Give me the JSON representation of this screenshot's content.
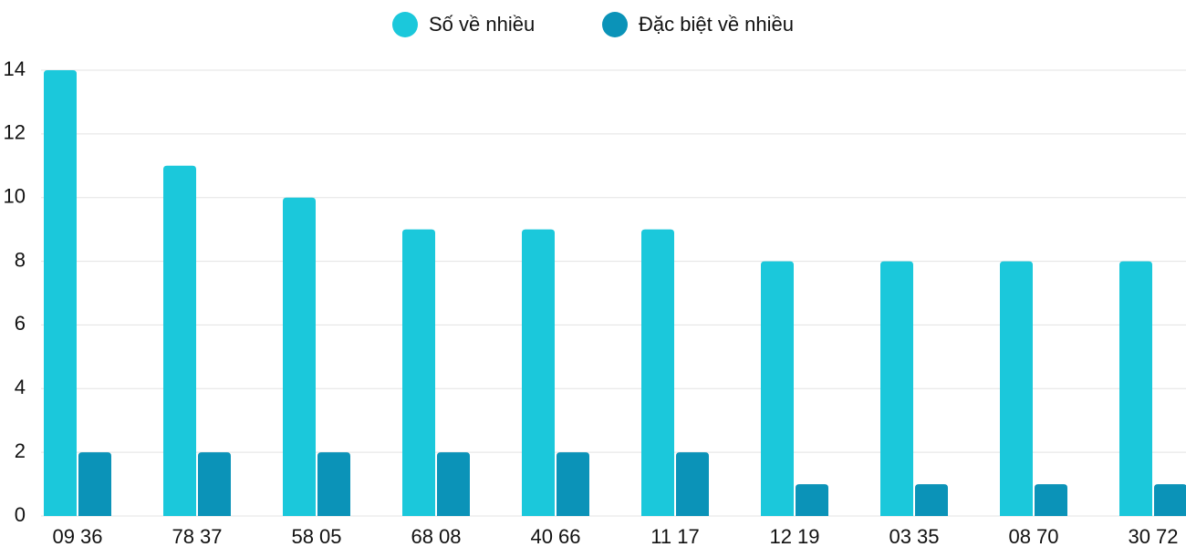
{
  "chart_data": {
    "type": "bar",
    "categories": [
      "09 36",
      "78 37",
      "58 05",
      "68 08",
      "40 66",
      "11 17",
      "12 19",
      "03 35",
      "08 70",
      "30 72"
    ],
    "series": [
      {
        "name": "Số về nhiều",
        "color": "#1bc8db",
        "values": [
          14,
          11,
          10,
          9,
          9,
          9,
          8,
          8,
          8,
          8
        ]
      },
      {
        "name": "Đặc biệt về nhiều",
        "color": "#0b93b8",
        "values": [
          2,
          2,
          2,
          2,
          2,
          2,
          1,
          1,
          1,
          1
        ]
      }
    ],
    "ylim": [
      0,
      14
    ],
    "yticks": [
      0,
      2,
      4,
      6,
      8,
      10,
      12,
      14
    ],
    "grid": true,
    "legend": "top"
  }
}
